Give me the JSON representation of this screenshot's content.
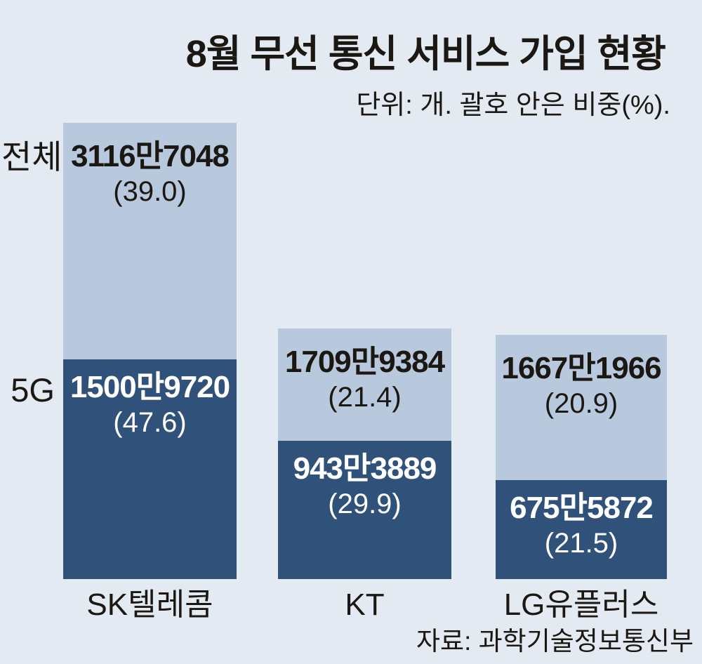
{
  "title": "8월 무선 통신 서비스 가입 현황",
  "subtitle": "단위: 개. 괄호 안은 비중(%).",
  "source": "자료: 과학기술정보통신부",
  "axis_labels": {
    "total": "전체",
    "fiveg": "5G"
  },
  "colors": {
    "background": "#e4eaf1",
    "bar_total": "#b8c9dd",
    "bar_5g": "#30527a",
    "text_dark": "#1b1713",
    "text_light": "#ffffff"
  },
  "chart_data": {
    "type": "bar",
    "subtype": "overlay-stacked",
    "title": "8월 무선 통신 서비스 가입 현황",
    "unit_note": "단위: 개. 괄호 안은 비중(%).",
    "categories": [
      "SK텔레콤",
      "KT",
      "LG유플러스"
    ],
    "series": [
      {
        "name": "전체",
        "values": [
          31167048,
          17099384,
          16671966
        ],
        "value_labels": [
          "3116만7048",
          "1709만9384",
          "1667만1966"
        ],
        "share_pct": [
          39.0,
          21.4,
          20.9
        ],
        "share_labels": [
          "(39.0)",
          "(21.4)",
          "(20.9)"
        ]
      },
      {
        "name": "5G",
        "values": [
          15009720,
          9433889,
          6755872
        ],
        "value_labels": [
          "1500만9720",
          "943만3889",
          "675만5872"
        ],
        "share_pct": [
          47.6,
          29.9,
          21.5
        ],
        "share_labels": [
          "(47.6)",
          "(29.9)",
          "(21.5)"
        ]
      }
    ],
    "ylim": [
      0,
      31167048
    ],
    "legend_position": "left-axis-labels",
    "grid": false,
    "source": "자료: 과학기술정보통신부"
  }
}
